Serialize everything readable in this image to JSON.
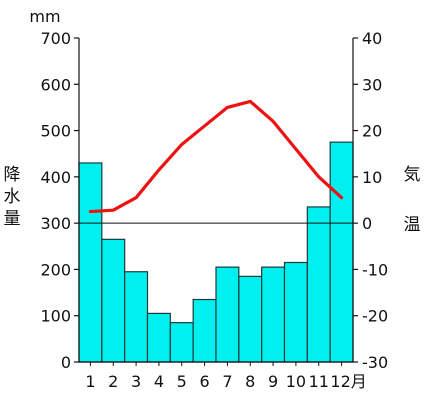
{
  "colors": {
    "bar_fill": "#00f0f0",
    "bar_stroke": "#1a3a3a",
    "line": "#ee1111",
    "axis": "#111111"
  },
  "chart_data": {
    "type": "bar+line",
    "categories": [
      "1",
      "2",
      "3",
      "4",
      "5",
      "6",
      "7",
      "8",
      "9",
      "10",
      "11",
      "12"
    ],
    "month_suffix": "月",
    "left_axis": {
      "unit": "mm",
      "label_chars": [
        "降",
        "水",
        "量"
      ],
      "ylim": [
        0,
        700
      ],
      "ticks": [
        0,
        100,
        200,
        300,
        400,
        500,
        600,
        700
      ]
    },
    "right_axis": {
      "label_chars": [
        "気",
        "温"
      ],
      "ylim": [
        -30,
        40
      ],
      "ticks": [
        -30,
        -20,
        -10,
        0,
        10,
        20,
        30,
        40
      ]
    },
    "series": [
      {
        "kind": "bar",
        "axis": "left",
        "values": [
          430,
          265,
          195,
          105,
          85,
          135,
          205,
          185,
          205,
          215,
          335,
          475
        ]
      },
      {
        "kind": "line",
        "axis": "right",
        "values": [
          2.5,
          2.8,
          5.5,
          11.5,
          17,
          21,
          25,
          26.3,
          22,
          16,
          10,
          5.5
        ]
      }
    ],
    "grid": false,
    "reference_line": {
      "axis": "right",
      "value": 0
    }
  }
}
